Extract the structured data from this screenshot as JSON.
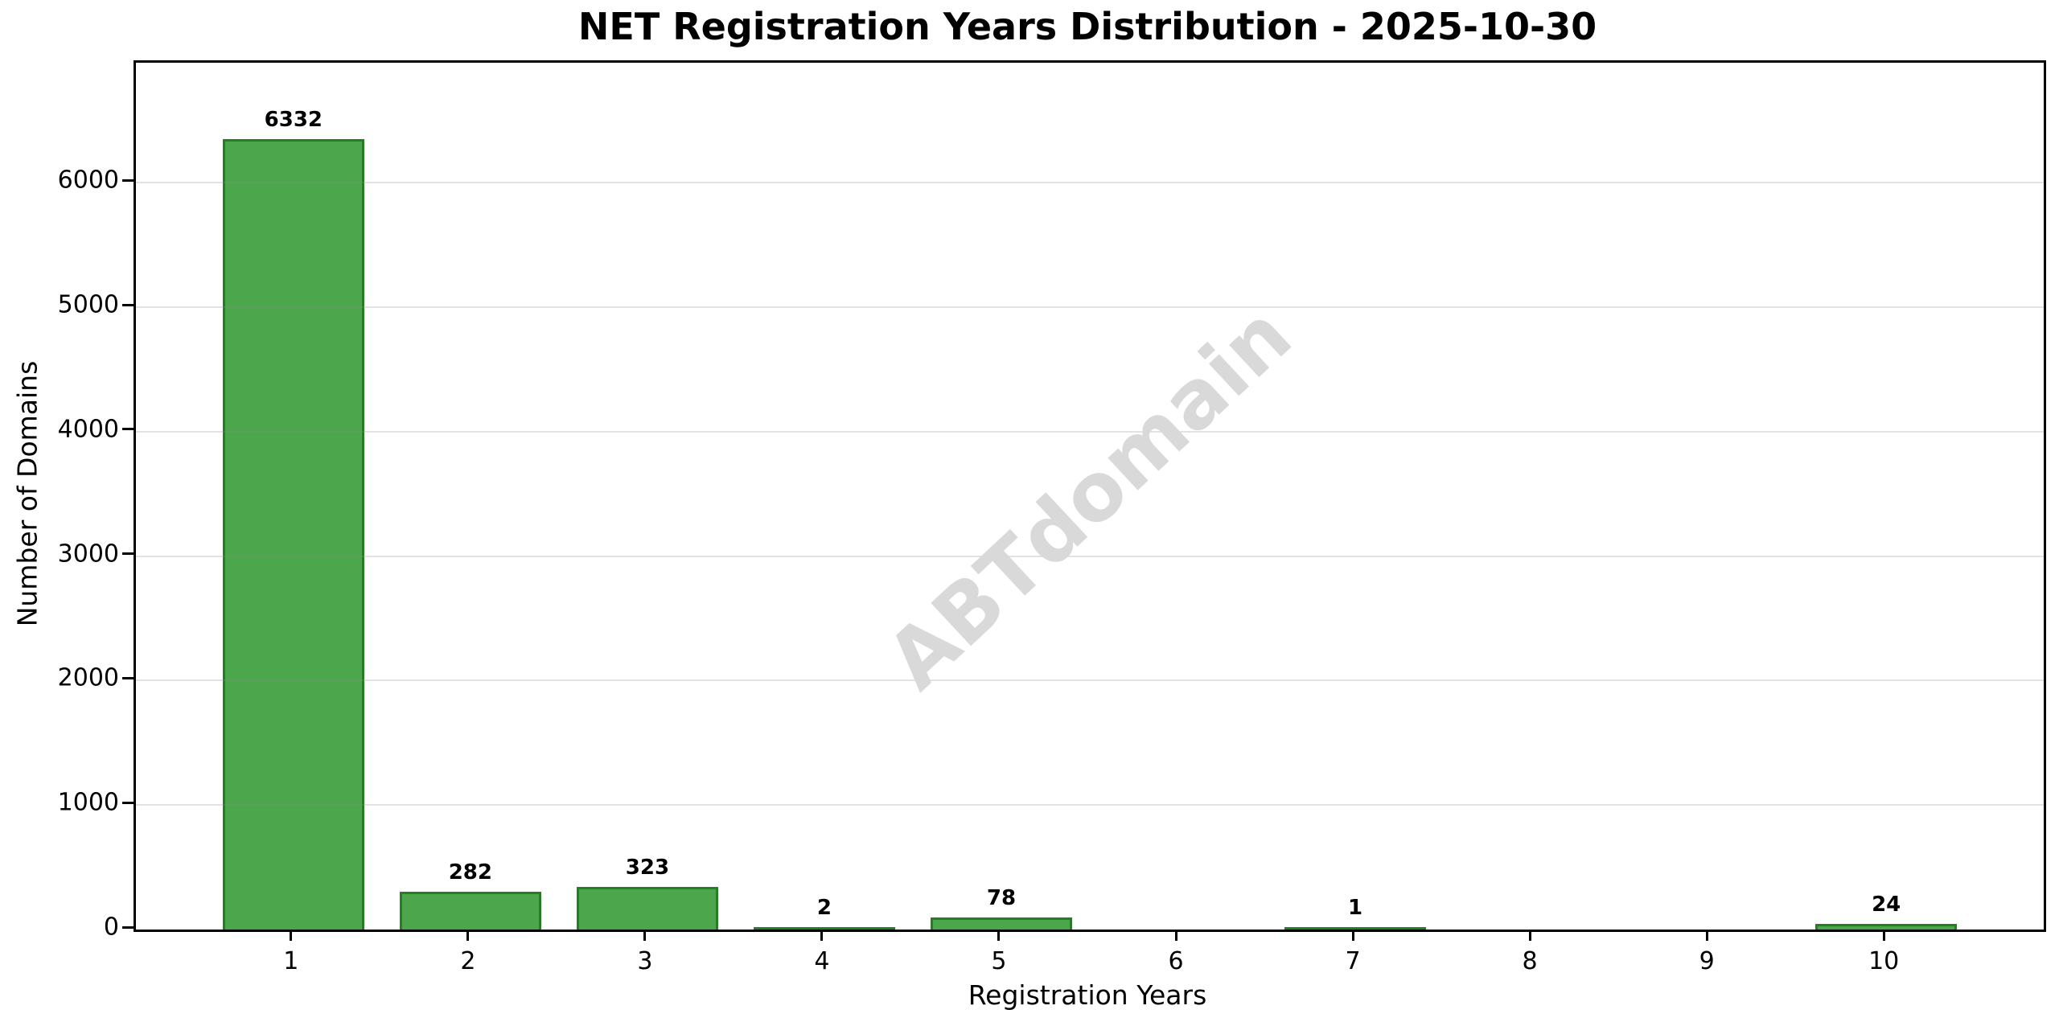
{
  "chart_data": {
    "type": "bar",
    "title": "NET Registration Years Distribution - 2025-10-30",
    "xlabel": "Registration Years",
    "ylabel": "Number of Domains",
    "categories": [
      1,
      2,
      3,
      4,
      5,
      6,
      7,
      8,
      9,
      10
    ],
    "values": [
      6332,
      282,
      323,
      2,
      78,
      0,
      1,
      0,
      0,
      24
    ],
    "bar_labels": [
      "6332",
      "282",
      "323",
      "2",
      "78",
      "",
      "1",
      "",
      "",
      "24"
    ],
    "yticks": [
      0,
      1000,
      2000,
      3000,
      4000,
      5000,
      6000
    ],
    "ylim": [
      0,
      6965
    ],
    "xlim": [
      0.11,
      10.89
    ],
    "bar_width": 0.8,
    "grid": "horizontal-only",
    "legend": "none",
    "bar_color": "#4ca64c",
    "bar_edge_color": "#267d23"
  },
  "watermark": {
    "text": "ABTdomain",
    "color": "#d9d9d9",
    "angle_deg": -43
  }
}
